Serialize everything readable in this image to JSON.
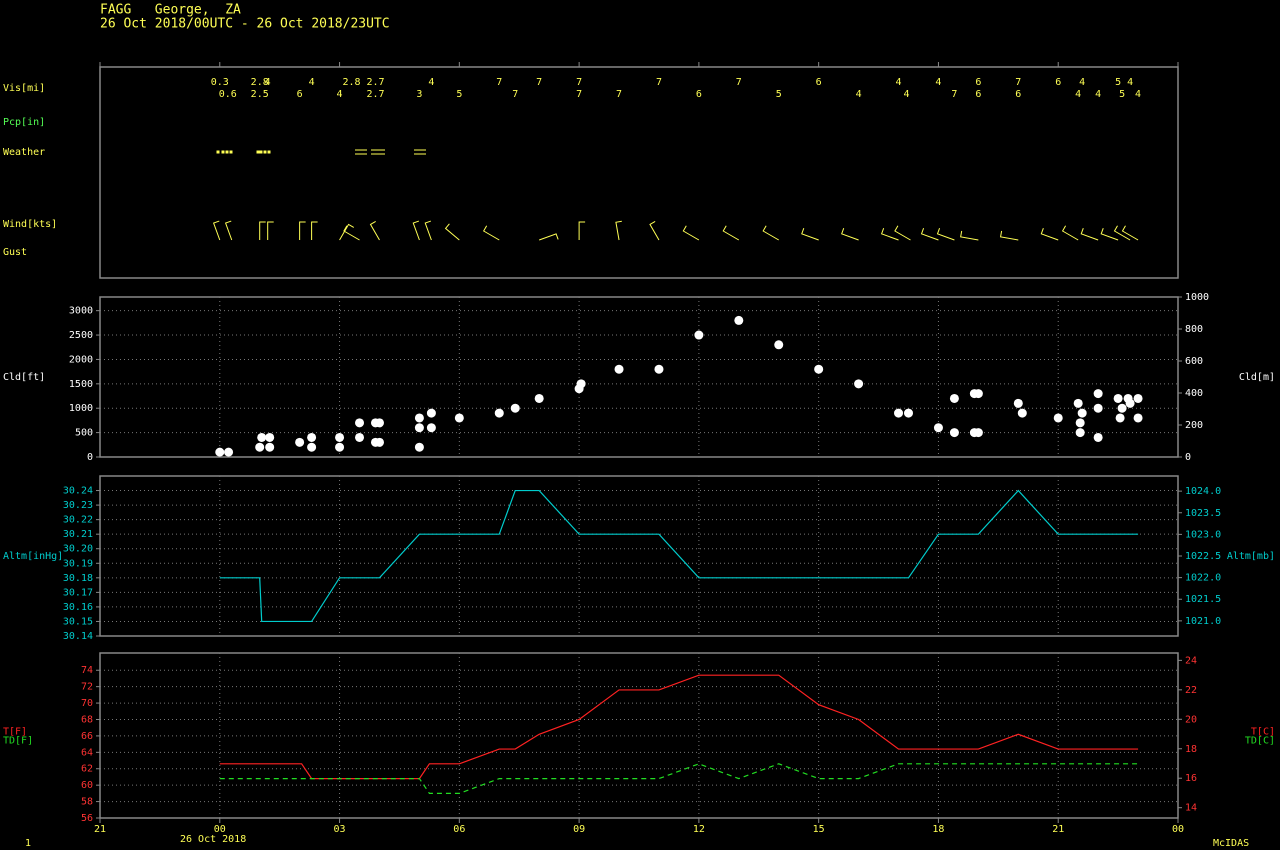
{
  "header": {
    "title": "FAGG   George,  ZA",
    "subtitle": "26 Oct 2018/00UTC - 26 Oct 2018/23UTC"
  },
  "x_axis": {
    "xlim": [
      -3,
      24
    ],
    "xticks": [
      {
        "value": -3,
        "label": "21"
      },
      {
        "value": 0,
        "label": "00"
      },
      {
        "value": 3,
        "label": "03"
      },
      {
        "value": 6,
        "label": "06"
      },
      {
        "value": 9,
        "label": "09"
      },
      12,
      15,
      18,
      21,
      {
        "value": 24,
        "label": "00"
      }
    ],
    "date_label": "26 Oct 2018"
  },
  "footer": {
    "left": "1",
    "right": "McIDAS"
  },
  "chart_data": [
    {
      "type": "station",
      "row_labels": [
        "Vis[mi]",
        "Pcp[in]",
        "Weather",
        "Wind[kts]",
        "Gust"
      ],
      "row_label_colors": [
        "#ffff55",
        "#55ff55",
        "#ffff55",
        "#ffff55",
        "#ffff55"
      ],
      "color": "#ffff55",
      "vis": {
        "series": [
          {
            "x": [
              0,
              1,
              1.2,
              2.3,
              3.3,
              3.9,
              5.3,
              7,
              8,
              9,
              11,
              13,
              15,
              17,
              18,
              19,
              20,
              21,
              21.6,
              22.5,
              22.8
            ],
            "values": [
              0.3,
              2.8,
              4,
              4,
              2.8,
              2.7,
              4,
              7,
              7,
              7,
              7,
              7,
              6,
              4,
              4,
              6,
              7,
              6,
              4,
              5,
              4
            ]
          },
          {
            "x": [
              0.2,
              1,
              2,
              3,
              3.9,
              5,
              6,
              7.4,
              9,
              10,
              12,
              14,
              16,
              17.2,
              18.4,
              19,
              20,
              21.5,
              22,
              22.6,
              23
            ],
            "values": [
              0.6,
              2.5,
              6,
              4,
              2.7,
              3,
              5,
              7,
              7,
              7,
              6,
              5,
              4,
              4,
              7,
              6,
              6,
              4,
              4,
              5,
              4
            ]
          }
        ]
      },
      "wind": {
        "x": [
          0,
          0.3,
          1,
          1.2,
          2,
          2.3,
          3,
          3.5,
          4,
          5,
          5.3,
          6,
          7,
          8,
          9,
          10,
          11,
          12,
          13,
          14,
          15,
          16,
          17,
          17.3,
          18,
          18.4,
          19,
          20,
          21,
          21.5,
          22,
          22.5,
          22.8,
          23
        ],
        "direction": [
          340,
          340,
          0,
          0,
          0,
          0,
          30,
          300,
          330,
          340,
          340,
          310,
          300,
          70,
          0,
          350,
          330,
          300,
          300,
          300,
          290,
          290,
          290,
          300,
          290,
          290,
          280,
          280,
          290,
          300,
          290,
          290,
          300,
          300
        ]
      }
    },
    {
      "type": "scatter",
      "ylabels": [
        "Cld[ft]"
      ],
      "y2labels": [
        "Cld[m]"
      ],
      "tick_color": "#ffffff",
      "color": "#ffffff",
      "grid": true,
      "ylim": [
        0,
        3280
      ],
      "yticks": [
        0,
        500,
        1000,
        1500,
        2000,
        2500,
        3000
      ],
      "y2lim": [
        0,
        1000
      ],
      "y2ticks": [
        0,
        200,
        400,
        600,
        800,
        1000
      ],
      "x": [
        0,
        0.22,
        1,
        1.05,
        1.25,
        1.25,
        2,
        2.3,
        2.3,
        3,
        3,
        3.5,
        3.5,
        3.9,
        4,
        3.9,
        4,
        5,
        5,
        5,
        5.3,
        5.3,
        6,
        7,
        7.4,
        8,
        9,
        9.05,
        10,
        11,
        12,
        13,
        14,
        15,
        16,
        17,
        17.25,
        18,
        18.4,
        18.4,
        18.9,
        19,
        18.9,
        19,
        20,
        20.1,
        21,
        21.5,
        21.6,
        21.55,
        21.55,
        22,
        22,
        22,
        22.5,
        22.55,
        22.8,
        22.75,
        23,
        23,
        22.6
      ],
      "values": [
        100,
        100,
        200,
        400,
        400,
        200,
        300,
        400,
        200,
        400,
        200,
        400,
        700,
        700,
        700,
        300,
        300,
        800,
        600,
        200,
        900,
        600,
        800,
        900,
        1000,
        1200,
        1400,
        1500,
        1800,
        1800,
        2500,
        2800,
        2300,
        1800,
        1500,
        900,
        900,
        600,
        1200,
        500,
        1300,
        1300,
        500,
        500,
        1100,
        900,
        800,
        1100,
        900,
        700,
        500,
        1300,
        1000,
        400,
        1200,
        800,
        1100,
        1200,
        1200,
        800,
        1000
      ]
    },
    {
      "type": "line",
      "ylabels": [
        "Altm[inHg]"
      ],
      "y2labels": [
        "Altm[mb]"
      ],
      "tick_color": "#00cccc",
      "grid": true,
      "ylim": [
        30.14,
        30.25
      ],
      "yticks": [
        30.14,
        30.15,
        30.16,
        30.17,
        30.18,
        30.19,
        {
          "value": 30.2,
          "label": "30.20"
        },
        30.21,
        30.22,
        30.23,
        30.24
      ],
      "y2lim": [
        1020.65,
        1024.35
      ],
      "y2ticks": [
        {
          "value": 1021,
          "label": "1021.0"
        },
        {
          "value": 1021.5,
          "label": "1021.5"
        },
        {
          "value": 1022,
          "label": "1022.0"
        },
        {
          "value": 1022.5,
          "label": "1022.5"
        },
        {
          "value": 1023,
          "label": "1023.0"
        },
        {
          "value": 1023.5,
          "label": "1023.5"
        },
        {
          "value": 1024,
          "label": "1024.0"
        }
      ],
      "series": [
        {
          "color": "#00cccc",
          "dash": false,
          "x": [
            0,
            1,
            1.05,
            2.3,
            3,
            4,
            5,
            7,
            7.4,
            8,
            9,
            11,
            12,
            17.25,
            18,
            19,
            20,
            21,
            23
          ],
          "values": [
            30.18,
            30.18,
            30.15,
            30.15,
            30.18,
            30.18,
            30.21,
            30.21,
            30.24,
            30.24,
            30.21,
            30.21,
            30.18,
            30.18,
            30.21,
            30.21,
            30.24,
            30.21,
            30.21
          ]
        }
      ]
    },
    {
      "type": "line",
      "ylabels": [
        "T[F]",
        "TD[F]"
      ],
      "y2labels": [
        "T[C]",
        "TD[C]"
      ],
      "tick_color": "#ff3333",
      "grid": true,
      "ylim": [
        56,
        76.1
      ],
      "yticks": [
        56,
        58,
        60,
        62,
        64,
        66,
        68,
        70,
        72,
        74
      ],
      "y2lim": [
        13.3,
        24.5
      ],
      "y2ticks": [
        14,
        16,
        18,
        20,
        22,
        24
      ],
      "series": [
        {
          "color": "#ff2222",
          "dash": false,
          "x": [
            0,
            2.05,
            2.3,
            5,
            5.25,
            6,
            7,
            7.4,
            8,
            9,
            10,
            11,
            12,
            14,
            15,
            16,
            17,
            19,
            20,
            21,
            23
          ],
          "values": [
            62.6,
            62.6,
            60.8,
            60.8,
            62.6,
            62.6,
            64.4,
            64.4,
            66.2,
            68,
            71.6,
            71.6,
            73.4,
            73.4,
            69.8,
            68,
            64.4,
            64.4,
            66.2,
            64.4,
            64.4
          ]
        },
        {
          "color": "#22dd22",
          "dash": true,
          "x": [
            0,
            5,
            5.25,
            6,
            7,
            11,
            12,
            13,
            14,
            15,
            16,
            17,
            23
          ],
          "values": [
            60.8,
            60.8,
            59,
            59,
            60.8,
            60.8,
            62.6,
            60.8,
            62.6,
            60.8,
            60.8,
            62.6,
            62.6
          ]
        }
      ]
    }
  ]
}
